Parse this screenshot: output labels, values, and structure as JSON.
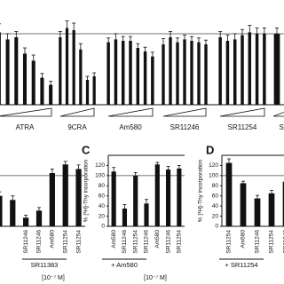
{
  "chart_data": [
    {
      "type": "bar",
      "color": "#111111",
      "ylim": [
        0,
        145
      ],
      "reference_line": 100,
      "groups": [
        {
          "name": "ATRA",
          "values": [
            102,
            92,
            95,
            72,
            62,
            38,
            28
          ],
          "errors": [
            12,
            8,
            8,
            8,
            8,
            6,
            5
          ]
        },
        {
          "name": "9CRA",
          "values": [
            95,
            108,
            105,
            78,
            35,
            40
          ],
          "errors": [
            8,
            10,
            10,
            8,
            5,
            5
          ]
        },
        {
          "name": "Am580",
          "values": [
            88,
            92,
            90,
            90,
            80,
            75,
            68
          ],
          "errors": [
            6,
            8,
            6,
            6,
            6,
            6,
            6
          ]
        },
        {
          "name": "SR11246",
          "values": [
            85,
            95,
            88,
            92,
            90,
            88,
            85
          ],
          "errors": [
            8,
            8,
            6,
            6,
            6,
            6,
            6
          ]
        },
        {
          "name": "SR11254",
          "values": [
            95,
            90,
            92,
            98,
            102,
            100,
            100
          ],
          "errors": [
            8,
            8,
            8,
            8,
            10,
            8,
            8
          ]
        },
        {
          "name": "SR",
          "values": [
            100,
            102
          ],
          "errors": [
            8,
            8
          ]
        }
      ]
    },
    {
      "type": "bar",
      "color": "#111111",
      "ylim": [
        0,
        140
      ],
      "reference_line": 100,
      "categories": [
        null,
        null,
        "SR11246",
        "SR11246",
        "Am580",
        "SR11254",
        "SR11254"
      ],
      "values": [
        60,
        52,
        17,
        31,
        105,
        122,
        113
      ],
      "errors": [
        8,
        8,
        5,
        6,
        8,
        6,
        8
      ],
      "group_label": "SR11383",
      "units": "[10⁻⁷ M]"
    },
    {
      "type": "bar",
      "color": "#111111",
      "panel_label": "C",
      "ylabel": "% [³H]-Thy incorporation",
      "ylim": [
        0,
        140
      ],
      "yticks": [
        0,
        20,
        40,
        60,
        80,
        100,
        120
      ],
      "reference_line": 100,
      "categories": [
        "Am580",
        "SR11246",
        "SR11254",
        "SR11246",
        "Am580",
        "SR11246",
        "SR11254"
      ],
      "values": [
        108,
        35,
        100,
        45,
        122,
        112,
        114
      ],
      "errors": [
        8,
        8,
        6,
        8,
        4,
        6,
        6
      ],
      "group_label": "+ Am580",
      "units": "[10⁻⁷ M]"
    },
    {
      "type": "bar",
      "color": "#111111",
      "panel_label": "D",
      "ylabel": "% [³H]-Thy incorporation",
      "ylim": [
        0,
        140
      ],
      "yticks": [
        0,
        20,
        40,
        60,
        80,
        100,
        120
      ],
      "reference_line": 100,
      "categories": [
        "SR11254",
        "Am580",
        "SR11246",
        "SR11254",
        "SR11246"
      ],
      "values": [
        125,
        85,
        55,
        65,
        88
      ],
      "errors": [
        8,
        4,
        6,
        6,
        6
      ],
      "group_label": "+ SR11254"
    }
  ]
}
